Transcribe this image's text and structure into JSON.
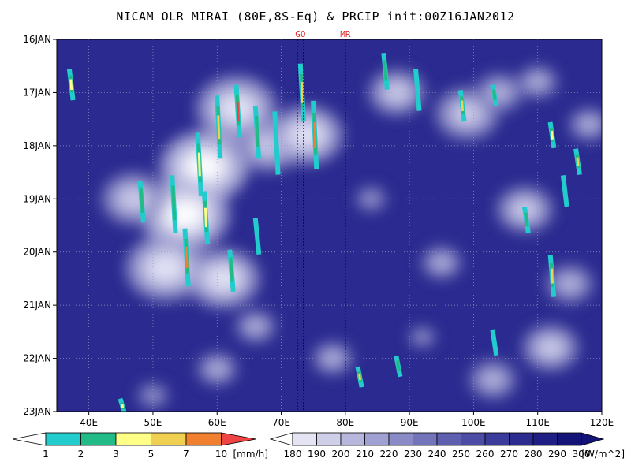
{
  "chart_data": {
    "type": "heatmap",
    "title": "NICAM OLR MIRAI (80E,8S-Eq) & PRCIP init:00Z16JAN2012",
    "xlabel": "",
    "ylabel": "",
    "x_range": [
      35,
      120
    ],
    "x_ticks": [
      40,
      50,
      60,
      70,
      80,
      90,
      100,
      110,
      120
    ],
    "x_tick_labels": [
      "40E",
      "50E",
      "60E",
      "70E",
      "80E",
      "90E",
      "100E",
      "110E",
      "120E"
    ],
    "y_tick_labels": [
      "16JAN",
      "17JAN",
      "18JAN",
      "19JAN",
      "20JAN",
      "21JAN",
      "22JAN",
      "23JAN"
    ],
    "y_range_days": [
      0,
      7
    ],
    "grid": true,
    "markers": [
      {
        "label": "GO",
        "x": [
          72.5,
          73.5
        ],
        "color": "#e03030"
      },
      {
        "label": "MR",
        "x": [
          80
        ],
        "color": "#e03030"
      }
    ],
    "precip_colorbar": {
      "unit": "[mm/h]",
      "levels": [
        "1",
        "2",
        "3",
        "5",
        "7",
        "10"
      ],
      "colors": [
        "#22cccc",
        "#22bb88",
        "#ffff88",
        "#f0d050",
        "#f08030",
        "#ee4444"
      ]
    },
    "olr_colorbar": {
      "unit": "[W/m^2]",
      "levels": [
        "180",
        "190",
        "200",
        "210",
        "220",
        "230",
        "240",
        "250",
        "260",
        "270",
        "280",
        "290",
        "300"
      ],
      "colors": [
        "#ffffff",
        "#e4e4f4",
        "#cfcfea",
        "#b7b7de",
        "#a0a0d2",
        "#8a8ac6",
        "#7474bb",
        "#5f5fb0",
        "#4c4ca6",
        "#3b3b9b",
        "#2c2c90",
        "#1e1e85",
        "#141478"
      ]
    },
    "olr_field_note": "Low OLR (white, deep convection) at 45-70E on 17-21JAN; high OLR (dark blue) over 35-45E and 90-120E.",
    "convective_patches_olr": [
      {
        "x": 63,
        "day": 1.3,
        "olr": 190
      },
      {
        "x": 58,
        "day": 2.4,
        "olr": 185
      },
      {
        "x": 55,
        "day": 3.3,
        "olr": 185
      },
      {
        "x": 52,
        "day": 4.3,
        "olr": 190
      },
      {
        "x": 61,
        "day": 4.5,
        "olr": 195
      },
      {
        "x": 68,
        "day": 2.0,
        "olr": 200
      },
      {
        "x": 47,
        "day": 3.0,
        "olr": 200
      },
      {
        "x": 88,
        "day": 1.0,
        "olr": 205
      },
      {
        "x": 99,
        "day": 1.4,
        "olr": 200
      },
      {
        "x": 104,
        "day": 1.0,
        "olr": 210
      },
      {
        "x": 110,
        "day": 0.8,
        "olr": 215
      },
      {
        "x": 118,
        "day": 1.6,
        "olr": 215
      },
      {
        "x": 108,
        "day": 3.2,
        "olr": 205
      },
      {
        "x": 115,
        "day": 4.6,
        "olr": 210
      },
      {
        "x": 112,
        "day": 5.8,
        "olr": 205
      },
      {
        "x": 95,
        "day": 4.2,
        "olr": 215
      },
      {
        "x": 84,
        "day": 3.0,
        "olr": 220
      },
      {
        "x": 78,
        "day": 6.0,
        "olr": 215
      },
      {
        "x": 103,
        "day": 6.4,
        "olr": 210
      },
      {
        "x": 60,
        "day": 6.2,
        "olr": 215
      },
      {
        "x": 50,
        "day": 6.7,
        "olr": 220
      },
      {
        "x": 66,
        "day": 5.4,
        "olr": 215
      },
      {
        "x": 92,
        "day": 5.6,
        "olr": 225
      },
      {
        "x": 74,
        "day": 1.8,
        "olr": 195
      }
    ],
    "precip_streaks": [
      {
        "x": 63,
        "day0": 0.9,
        "day1": 1.8,
        "rate": 10
      },
      {
        "x": 60,
        "day0": 1.1,
        "day1": 2.2,
        "rate": 5
      },
      {
        "x": 57,
        "day0": 1.8,
        "day1": 2.9,
        "rate": 3
      },
      {
        "x": 53,
        "day0": 2.6,
        "day1": 3.6,
        "rate": 2
      },
      {
        "x": 55,
        "day0": 3.6,
        "day1": 4.6,
        "rate": 7
      },
      {
        "x": 58,
        "day0": 2.9,
        "day1": 3.8,
        "rate": 3
      },
      {
        "x": 48,
        "day0": 2.7,
        "day1": 3.4,
        "rate": 2
      },
      {
        "x": 66,
        "day0": 1.3,
        "day1": 2.2,
        "rate": 2
      },
      {
        "x": 73,
        "day0": 0.5,
        "day1": 1.5,
        "rate": 5
      },
      {
        "x": 75,
        "day0": 1.2,
        "day1": 2.4,
        "rate": 7
      },
      {
        "x": 69,
        "day0": 1.4,
        "day1": 2.5,
        "rate": 1
      },
      {
        "x": 62,
        "day0": 4.0,
        "day1": 4.7,
        "rate": 2
      },
      {
        "x": 37,
        "day0": 0.6,
        "day1": 1.1,
        "rate": 3
      },
      {
        "x": 86,
        "day0": 0.3,
        "day1": 0.9,
        "rate": 2
      },
      {
        "x": 91,
        "day0": 0.6,
        "day1": 1.3,
        "rate": 1
      },
      {
        "x": 98,
        "day0": 1.0,
        "day1": 1.5,
        "rate": 5
      },
      {
        "x": 103,
        "day0": 0.9,
        "day1": 1.2,
        "rate": 2
      },
      {
        "x": 112,
        "day0": 1.6,
        "day1": 2.0,
        "rate": 3
      },
      {
        "x": 116,
        "day0": 2.1,
        "day1": 2.5,
        "rate": 5
      },
      {
        "x": 108,
        "day0": 3.2,
        "day1": 3.6,
        "rate": 2
      },
      {
        "x": 112,
        "day0": 4.1,
        "day1": 4.8,
        "rate": 5
      },
      {
        "x": 114,
        "day0": 2.6,
        "day1": 3.1,
        "rate": 1
      },
      {
        "x": 88,
        "day0": 6.0,
        "day1": 6.3,
        "rate": 2
      },
      {
        "x": 103,
        "day0": 5.5,
        "day1": 5.9,
        "rate": 1
      },
      {
        "x": 45,
        "day0": 6.8,
        "day1": 7.0,
        "rate": 3
      },
      {
        "x": 82,
        "day0": 6.2,
        "day1": 6.5,
        "rate": 5
      },
      {
        "x": 66,
        "day0": 3.4,
        "day1": 4.0,
        "rate": 1
      }
    ]
  }
}
